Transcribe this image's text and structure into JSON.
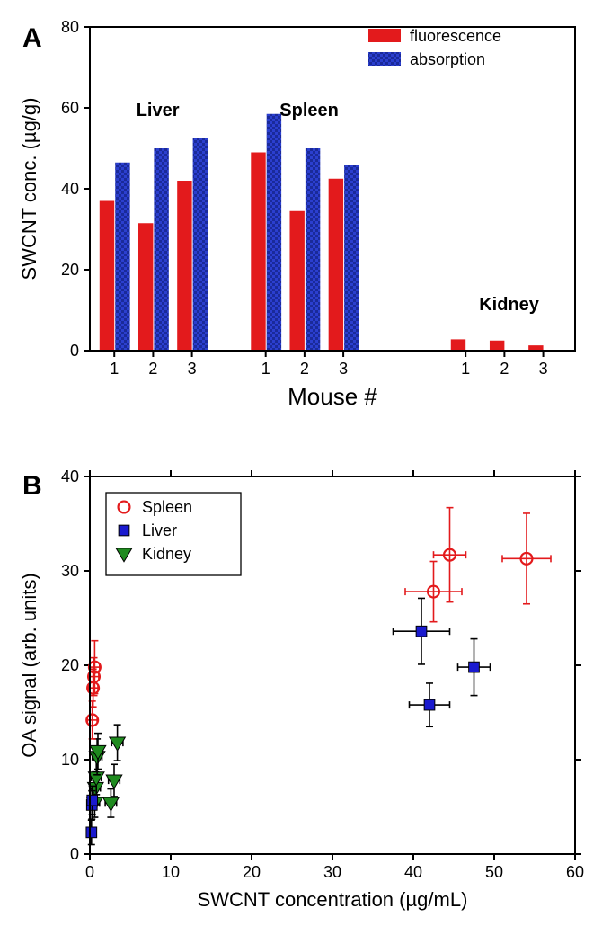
{
  "panelA": {
    "label": "A",
    "label_fontsize": 30,
    "label_fontweight": "bold",
    "type": "bar",
    "ylabel": "SWCNT conc. (µg/g)",
    "xlabel": "Mouse #",
    "axis_label_fontsize": 22,
    "tick_fontsize": 18,
    "ylim": [
      0,
      80
    ],
    "ytick_step": 20,
    "bar_width": 0.38,
    "legend": {
      "items": [
        {
          "label": "fluorescence",
          "color": "#e31a1c",
          "pattern": false
        },
        {
          "label": "absorption",
          "color": "#2b3fcf",
          "pattern": true
        }
      ],
      "fontsize": 18
    },
    "groups": [
      {
        "title": "Liver",
        "title_fontsize": 20,
        "title_fontweight": "bold",
        "mice": [
          {
            "mouse": "1",
            "fluorescence": 37,
            "absorption": 46.5
          },
          {
            "mouse": "2",
            "fluorescence": 31.5,
            "absorption": 50
          },
          {
            "mouse": "3",
            "fluorescence": 42,
            "absorption": 52.5
          }
        ]
      },
      {
        "title": "Spleen",
        "title_fontsize": 20,
        "title_fontweight": "bold",
        "mice": [
          {
            "mouse": "1",
            "fluorescence": 49,
            "absorption": 58.5
          },
          {
            "mouse": "2",
            "fluorescence": 34.5,
            "absorption": 50
          },
          {
            "mouse": "3",
            "fluorescence": 42.5,
            "absorption": 46
          }
        ]
      },
      {
        "title": "Kidney",
        "title_fontsize": 20,
        "title_fontweight": "bold",
        "mice": [
          {
            "mouse": "1",
            "fluorescence": 2.8,
            "absorption": 0
          },
          {
            "mouse": "2",
            "fluorescence": 2.5,
            "absorption": 0
          },
          {
            "mouse": "3",
            "fluorescence": 1.3,
            "absorption": 0
          }
        ]
      }
    ],
    "colors": {
      "fluorescence": "#e31a1c",
      "absorption": "#2b3fcf",
      "axis": "#000000",
      "background": "#ffffff"
    }
  },
  "panelB": {
    "label": "B",
    "label_fontsize": 30,
    "label_fontweight": "bold",
    "type": "scatter",
    "xlabel": "SWCNT concentration (µg/mL)",
    "ylabel": "OA signal (arb. units)",
    "axis_label_fontsize": 22,
    "tick_fontsize": 18,
    "xlim": [
      0,
      60
    ],
    "ylim": [
      0,
      40
    ],
    "xtick_step": 10,
    "ytick_step": 10,
    "legend": {
      "items": [
        {
          "label": "Spleen",
          "marker": "circle-open",
          "color": "#e31a1c"
        },
        {
          "label": "Liver",
          "marker": "square-filled",
          "color": "#1a1acf"
        },
        {
          "label": "Kidney",
          "marker": "triangle-down-filled",
          "color": "#1f8b1f"
        }
      ],
      "fontsize": 18
    },
    "marker_size": 9,
    "series": {
      "spleen": {
        "marker": "circle-open",
        "color": "#e31a1c",
        "errorbar_color": "#e31a1c",
        "points": [
          {
            "x": 0.3,
            "y": 14.2,
            "ex": 0.6,
            "ey": 2.0
          },
          {
            "x": 0.4,
            "y": 17.6,
            "ex": 0.6,
            "ey": 2.0
          },
          {
            "x": 0.5,
            "y": 18.8,
            "ex": 0.6,
            "ey": 2.0
          },
          {
            "x": 0.6,
            "y": 19.8,
            "ex": 0.6,
            "ey": 2.8
          },
          {
            "x": 42.5,
            "y": 27.8,
            "ex": 3.5,
            "ey": 3.2
          },
          {
            "x": 44.5,
            "y": 31.7,
            "ex": 2.0,
            "ey": 5.0
          },
          {
            "x": 54.0,
            "y": 31.3,
            "ex": 3.0,
            "ey": 4.8
          }
        ]
      },
      "liver": {
        "marker": "square-filled",
        "color": "#1a1acf",
        "errorbar_color": "#000000",
        "points": [
          {
            "x": 0.2,
            "y": 2.3,
            "ex": 0.6,
            "ey": 1.3
          },
          {
            "x": 0.25,
            "y": 5.2,
            "ex": 0.6,
            "ey": 1.5
          },
          {
            "x": 0.3,
            "y": 5.7,
            "ex": 0.6,
            "ey": 1.5
          },
          {
            "x": 41.0,
            "y": 23.6,
            "ex": 3.5,
            "ey": 3.5
          },
          {
            "x": 42.0,
            "y": 15.8,
            "ex": 2.5,
            "ey": 2.3
          },
          {
            "x": 47.5,
            "y": 19.8,
            "ex": 2.0,
            "ey": 3.0
          }
        ]
      },
      "kidney": {
        "marker": "triangle-down-filled",
        "color": "#1f8b1f",
        "errorbar_color": "#000000",
        "points": [
          {
            "x": 0.6,
            "y": 5.4,
            "ex": 0.6,
            "ey": 1.5
          },
          {
            "x": 0.7,
            "y": 7.0,
            "ex": 0.6,
            "ey": 1.7
          },
          {
            "x": 0.8,
            "y": 8.1,
            "ex": 0.6,
            "ey": 1.8
          },
          {
            "x": 0.9,
            "y": 10.3,
            "ex": 0.6,
            "ey": 1.9
          },
          {
            "x": 1.0,
            "y": 10.9,
            "ex": 0.6,
            "ey": 1.9
          },
          {
            "x": 2.6,
            "y": 5.4,
            "ex": 0.7,
            "ey": 1.5
          },
          {
            "x": 3.0,
            "y": 7.8,
            "ex": 0.7,
            "ey": 1.7
          },
          {
            "x": 3.4,
            "y": 11.8,
            "ex": 0.7,
            "ey": 1.9
          }
        ]
      }
    },
    "colors": {
      "axis": "#000000",
      "background": "#ffffff"
    }
  }
}
